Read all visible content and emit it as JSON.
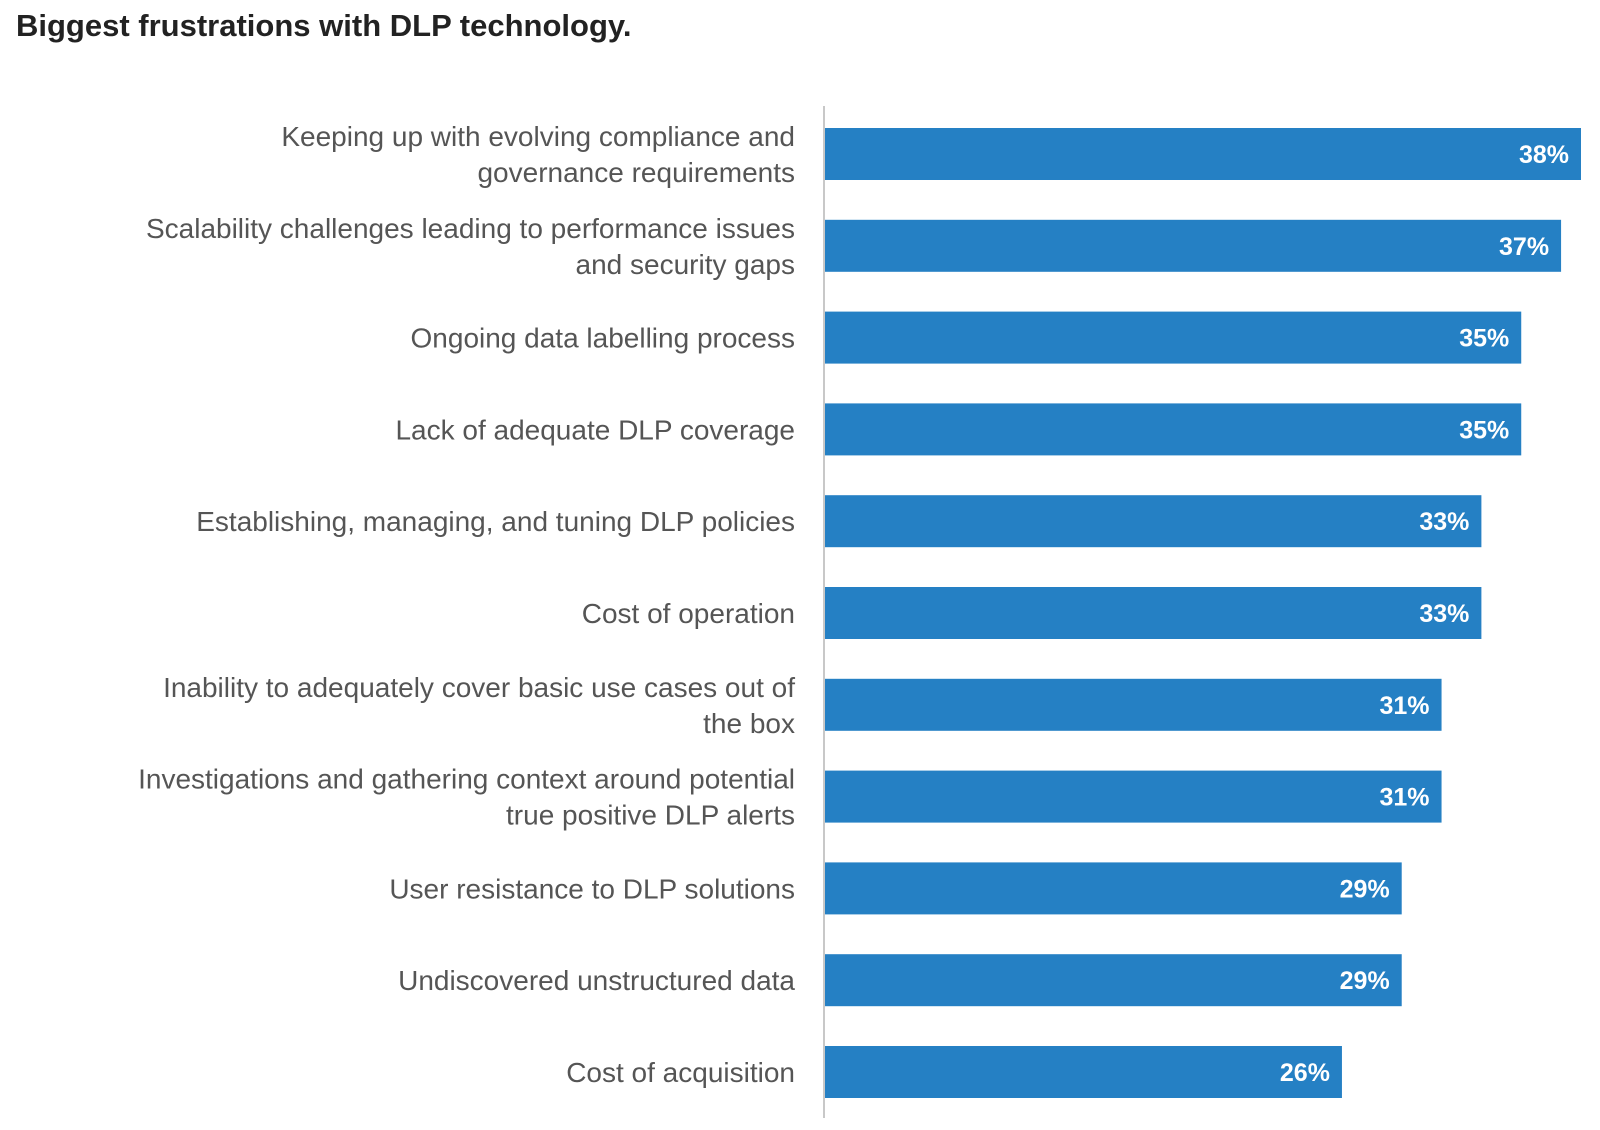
{
  "chart_data": {
    "type": "bar",
    "orientation": "horizontal",
    "title": "Biggest frustrations with DLP technology.",
    "xlabel": "",
    "ylabel": "",
    "xlim": [
      0,
      38
    ],
    "grid": false,
    "legend": "none",
    "bar_color": "#2580c4",
    "categories": [
      [
        "Keeping up with evolving compliance and",
        "governance requirements"
      ],
      [
        "Scalability challenges leading to performance issues",
        "and security gaps"
      ],
      [
        "Ongoing data labelling process"
      ],
      [
        "Lack of adequate DLP coverage"
      ],
      [
        "Establishing, managing, and tuning DLP policies"
      ],
      [
        "Cost of operation"
      ],
      [
        "Inability to adequately cover basic use cases out of",
        "the box"
      ],
      [
        "Investigations and gathering context around potential",
        "true positive DLP alerts"
      ],
      [
        "User resistance to DLP solutions"
      ],
      [
        "Undiscovered unstructured data"
      ],
      [
        "Cost of acquisition"
      ]
    ],
    "values": [
      38,
      37,
      35,
      35,
      33,
      33,
      31,
      31,
      29,
      29,
      26
    ],
    "value_labels": [
      "38%",
      "37%",
      "35%",
      "35%",
      "33%",
      "33%",
      "31%",
      "31%",
      "29%",
      "29%",
      "26%"
    ]
  }
}
